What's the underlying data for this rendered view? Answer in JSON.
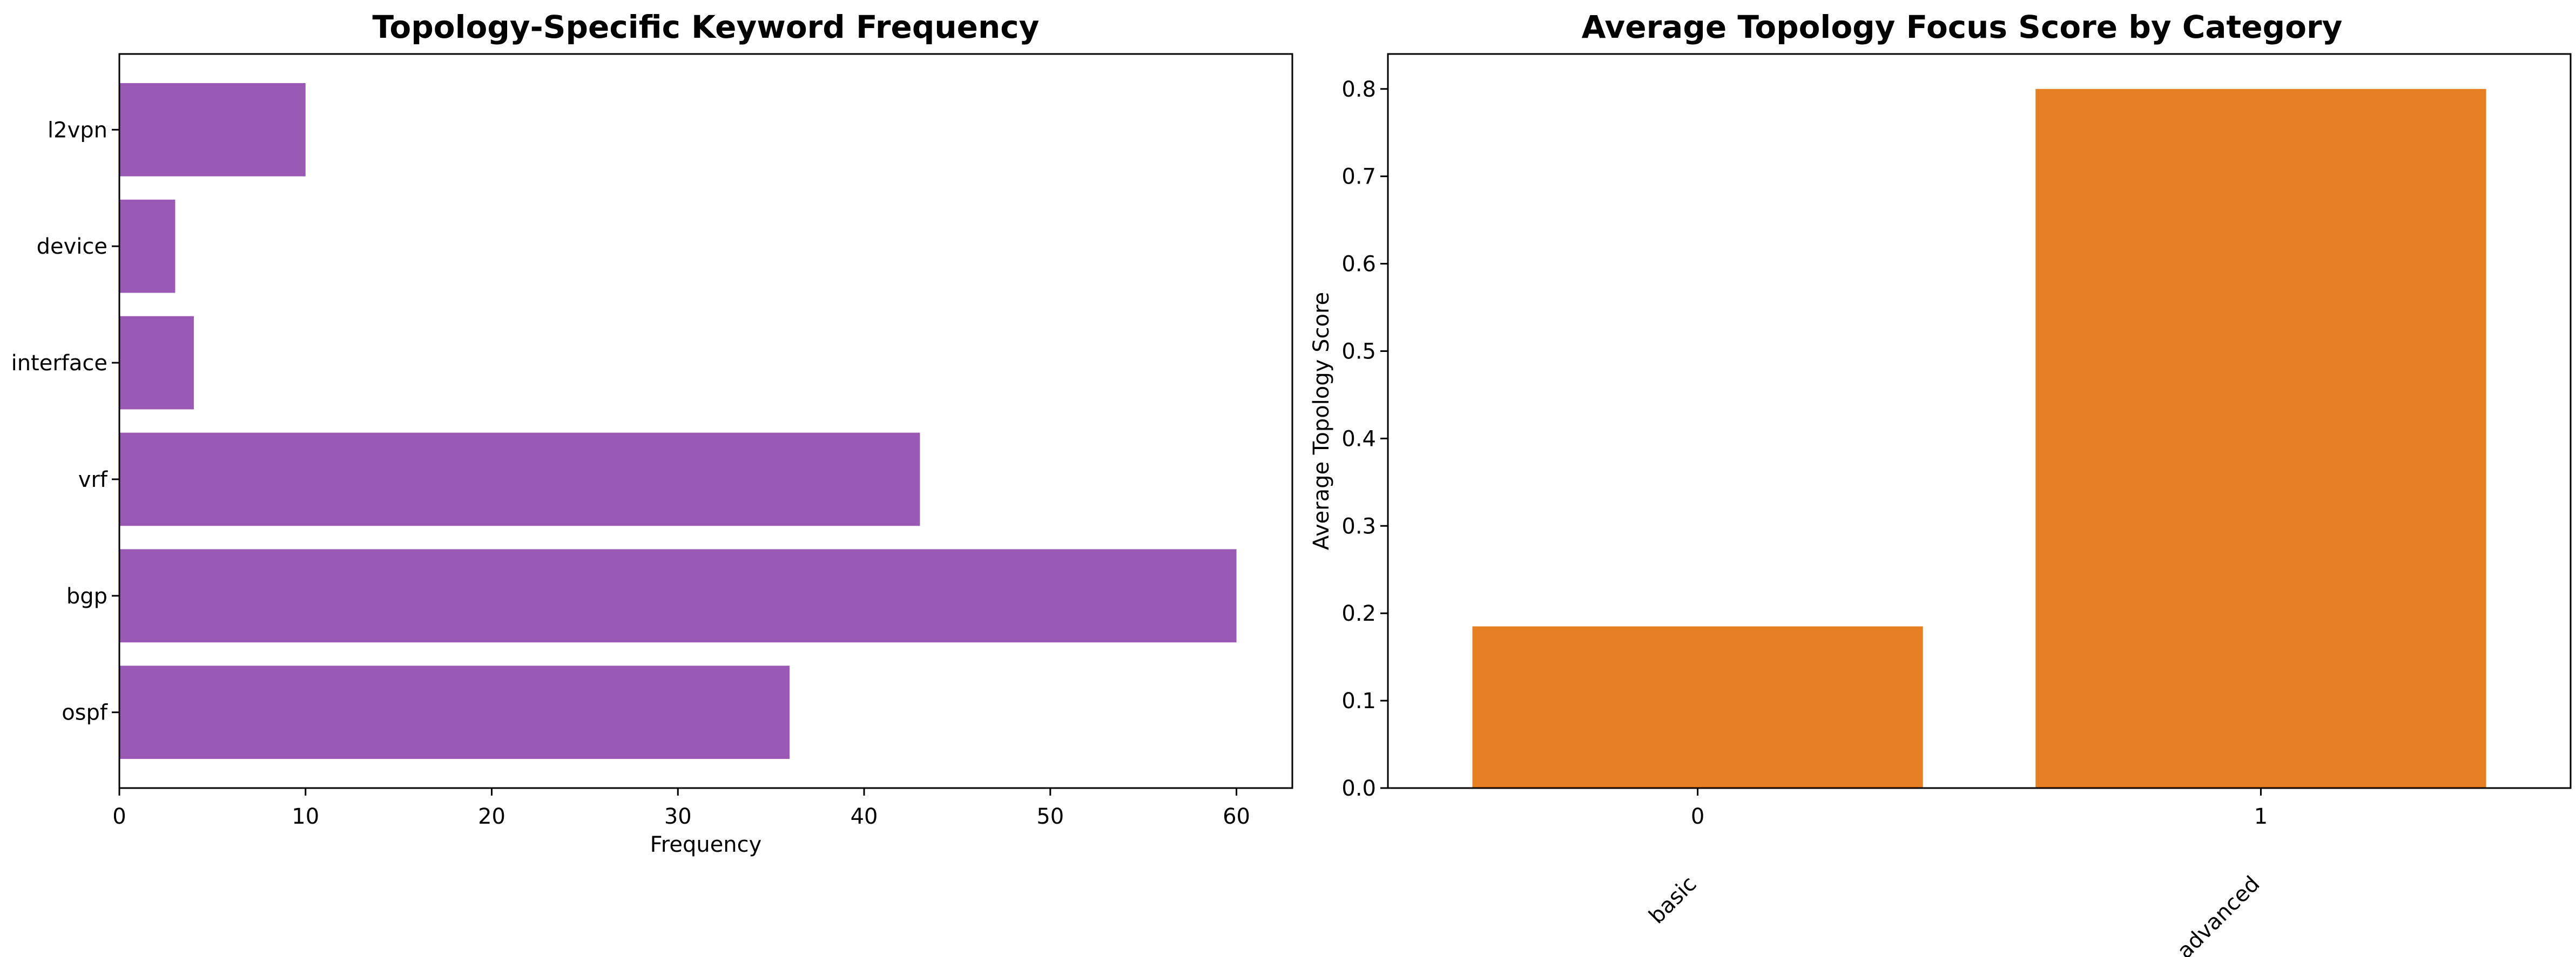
{
  "chart_data": [
    {
      "type": "bar",
      "orientation": "horizontal",
      "title": "Topology-Specific Keyword Frequency",
      "xlabel": "Frequency",
      "ylabel": "",
      "categories": [
        "ospf",
        "bgp",
        "vrf",
        "interface",
        "device",
        "l2vpn"
      ],
      "values": [
        36,
        60,
        43,
        4,
        3,
        10
      ],
      "xlim": [
        0,
        63
      ],
      "xticks": [
        "0",
        "10",
        "20",
        "30",
        "40",
        "50",
        "60"
      ],
      "color": "#9b59b6",
      "grid": false
    },
    {
      "type": "bar",
      "orientation": "vertical",
      "title": "Average Topology Focus Score by Category",
      "xlabel": "",
      "ylabel": "Average Topology Score",
      "categories": [
        "0",
        "1"
      ],
      "category_labels": [
        "basic",
        "advanced"
      ],
      "values": [
        0.185,
        0.8
      ],
      "ylim": [
        0,
        0.84
      ],
      "yticks": [
        "0.0",
        "0.1",
        "0.2",
        "0.3",
        "0.4",
        "0.5",
        "0.6",
        "0.7",
        "0.8"
      ],
      "color": "#e67e22",
      "grid": false
    }
  ]
}
